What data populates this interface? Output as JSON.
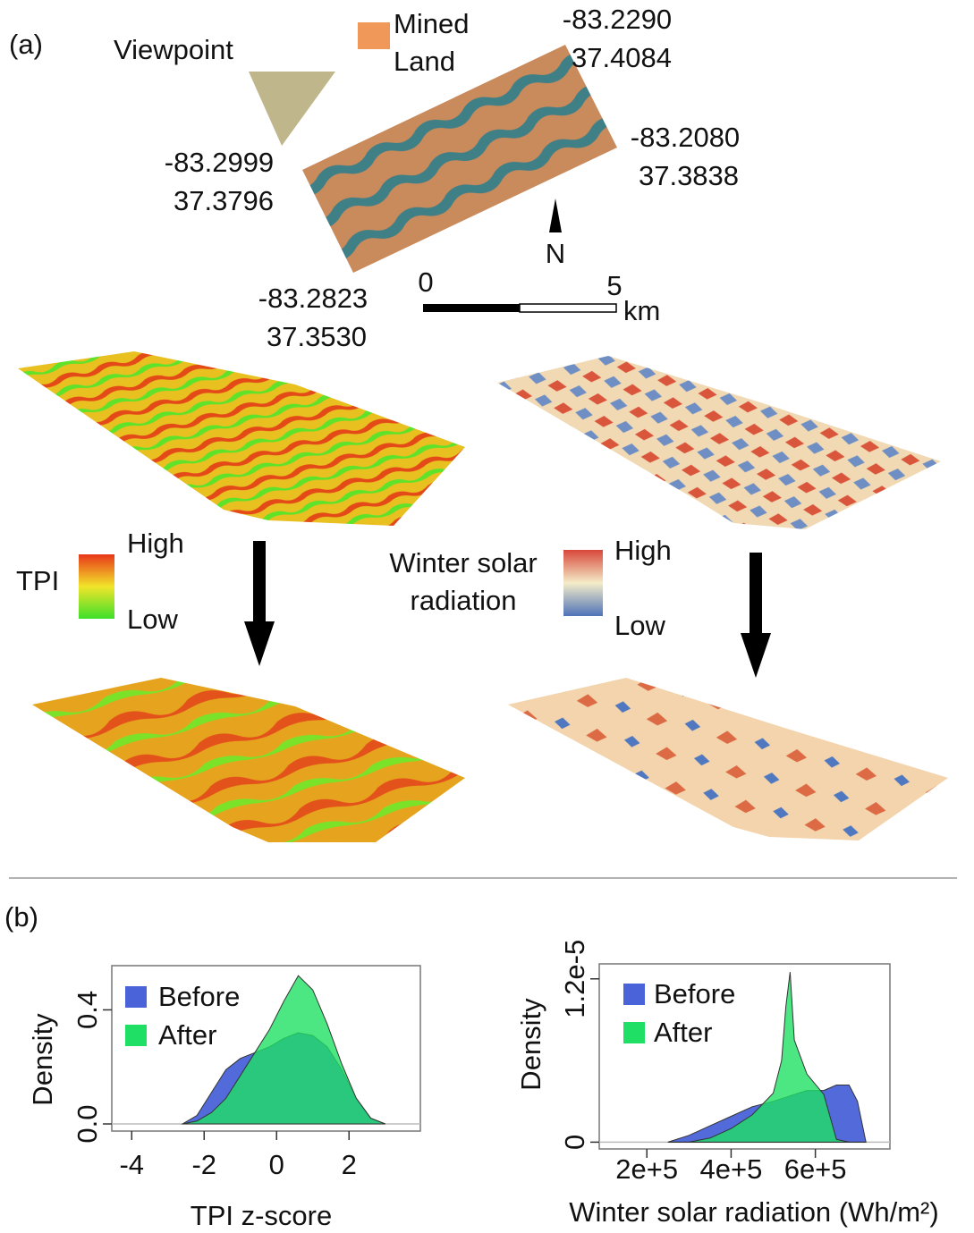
{
  "panel_a": {
    "label": "(a)",
    "viewpoint": "Viewpoint",
    "mined_land": [
      "Mined",
      "Land"
    ],
    "corners": [
      [
        "-83.2290",
        "37.4084"
      ],
      [
        "-83.2080",
        "37.3838"
      ],
      [
        "-83.2999",
        "37.3796"
      ],
      [
        "-83.2823",
        "37.3530"
      ]
    ],
    "north": "N",
    "scale": {
      "start": "0",
      "end": "5",
      "unit": "km"
    },
    "tpi_legend": {
      "title": "TPI",
      "high": "High",
      "low": "Low"
    },
    "solar_legend": {
      "title": [
        "Winter solar",
        "radiation"
      ],
      "high": "High",
      "low": "Low"
    }
  },
  "panel_b": {
    "label": "(b)"
  },
  "chart_data": [
    {
      "type": "area",
      "x_label": "TPI z-score",
      "y_label": "Density",
      "x": [
        -2.6,
        -2.2,
        -1.8,
        -1.4,
        -1,
        -0.6,
        -0.2,
        0.2,
        0.6,
        1,
        1.4,
        1.8,
        2.2,
        2.6,
        3.0
      ],
      "series": [
        {
          "name": "Before",
          "color": "#4a63d8",
          "values": [
            0,
            0.03,
            0.11,
            0.19,
            0.23,
            0.25,
            0.27,
            0.3,
            0.32,
            0.31,
            0.27,
            0.19,
            0.09,
            0.02,
            0
          ]
        },
        {
          "name": "After",
          "color": "#1fe064",
          "values": [
            0,
            0.01,
            0.04,
            0.09,
            0.17,
            0.25,
            0.33,
            0.43,
            0.52,
            0.47,
            0.35,
            0.21,
            0.09,
            0.02,
            0
          ]
        }
      ],
      "xlim": [
        -4.55,
        3.97
      ],
      "ylim": [
        -0.025,
        0.555
      ],
      "xticks": [
        -4,
        -2,
        0,
        2
      ],
      "yticks": [
        {
          "value": 0,
          "label": "0.0"
        },
        {
          "value": 0.4,
          "label": "0.4"
        }
      ]
    },
    {
      "type": "area",
      "x_label": "Winter solar radiation (Wh/m²)",
      "y_label": "Density",
      "x": [
        250000,
        300000,
        350000,
        400000,
        450000,
        500000,
        520000,
        530000,
        540000,
        550000,
        580000,
        620000,
        650000,
        680000,
        700000,
        720000
      ],
      "series": [
        {
          "name": "Before",
          "color": "#4a63d8",
          "values": [
            0,
            5e-07,
            1.2e-06,
            1.9e-06,
            2.6e-06,
            3e-06,
            3.2e-06,
            3.3e-06,
            3.4e-06,
            3.5e-06,
            3.8e-06,
            3.8e-06,
            4.2e-06,
            4.2e-06,
            3e-06,
            0
          ]
        },
        {
          "name": "After",
          "color": "#1fe064",
          "values": [
            0,
            0,
            3e-07,
            1e-06,
            2e-06,
            3.6e-06,
            6e-06,
            1e-05,
            1.25e-05,
            7.5e-06,
            5e-06,
            3.5e-06,
            2e-07,
            0,
            0,
            0
          ]
        }
      ],
      "xlim": [
        87000,
        777000
      ],
      "ylim": [
        -5e-07,
        1.31e-05
      ],
      "xticks": [
        {
          "value": 200000,
          "label": "2e+5"
        },
        {
          "value": 400000,
          "label": "4e+5"
        },
        {
          "value": 600000,
          "label": "6e+5"
        }
      ],
      "yticks": [
        0,
        {
          "value": 1.2e-05,
          "label": "1.2e-5"
        }
      ]
    }
  ]
}
